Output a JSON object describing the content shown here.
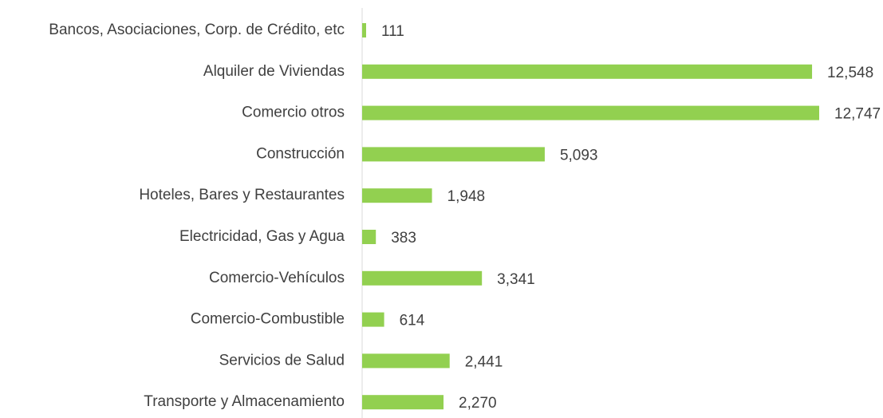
{
  "chart_data": {
    "type": "barh",
    "categories": [
      "Bancos, Asociaciones, Corp. de Crédito, etc",
      "Alquiler de Viviendas",
      "Comercio otros",
      "Construcción",
      "Hoteles, Bares y Restaurantes",
      "Electricidad, Gas y Agua",
      "Comercio-Vehículos",
      "Comercio-Combustible",
      "Servicios de Salud",
      "Transporte y Almacenamiento"
    ],
    "values": [
      111,
      12548,
      12747,
      5093,
      1948,
      383,
      3341,
      614,
      2441,
      2270
    ],
    "value_labels": [
      "111",
      "12,548",
      "12,747",
      "5,093",
      "1,948",
      "383",
      "3,341",
      "614",
      "2,441",
      "2,270"
    ],
    "color": "#92d050"
  }
}
